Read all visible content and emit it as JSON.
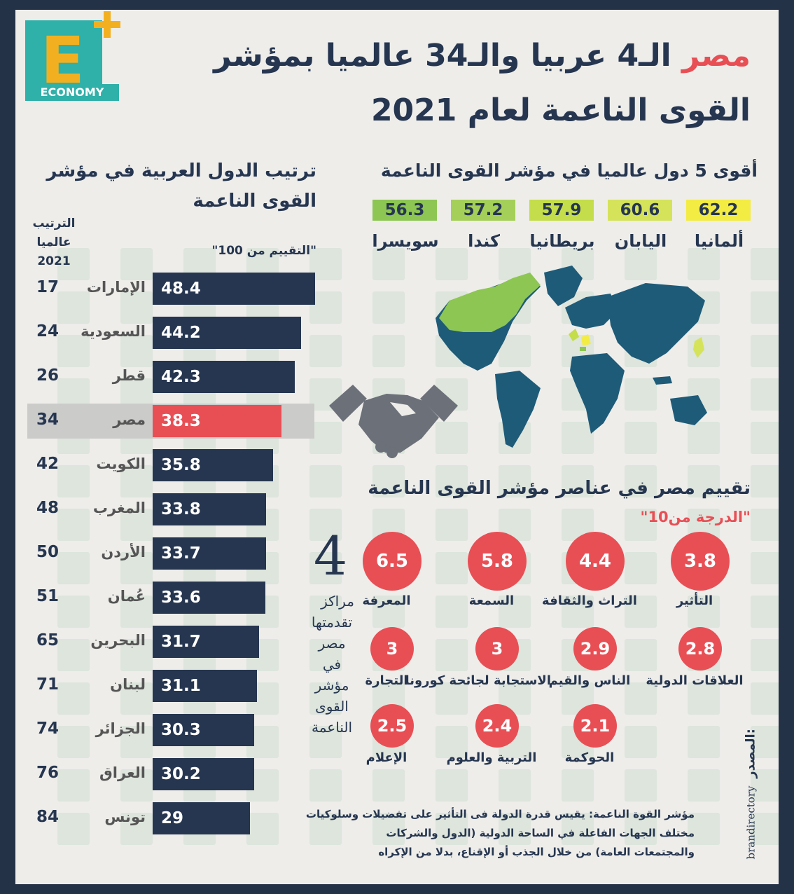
{
  "logo": {
    "letter": "E",
    "brand": "ECONOMY"
  },
  "title": {
    "highlight": "مصر",
    "line1": " الـ4 عربيا والـ34 عالميا بمؤشر",
    "line2": "القوى الناعمة لعام 2021"
  },
  "top5": {
    "heading": "أقوى 5 دول عالميا في مؤشر القوى الناعمة",
    "items": [
      {
        "country": "ألمانيا",
        "score": "62.2",
        "color": "#f3ec43"
      },
      {
        "country": "اليابان",
        "score": "60.6",
        "color": "#d5e35a"
      },
      {
        "country": "بريطانيا",
        "score": "57.9",
        "color": "#c4dd4a"
      },
      {
        "country": "كندا",
        "score": "57.2",
        "color": "#a4cf58"
      },
      {
        "country": "سويسرا",
        "score": "56.3",
        "color": "#8dc653"
      }
    ]
  },
  "arab_ranking": {
    "heading_line1": "ترتيب الدول العربية في مؤشر",
    "heading_line2": "القوى الناعمة",
    "rank_header": [
      "الترتيب",
      "عالميا",
      "2021"
    ],
    "score_header": "\"التقييم من 100\"",
    "rows": [
      {
        "country": "الإمارات",
        "score": "48.4",
        "rank": "17",
        "value": 48.4
      },
      {
        "country": "السعودية",
        "score": "44.2",
        "rank": "24",
        "value": 44.2
      },
      {
        "country": "قطر",
        "score": "42.3",
        "rank": "26",
        "value": 42.3
      },
      {
        "country": "مصر",
        "score": "38.3",
        "rank": "34",
        "value": 38.3,
        "highlight": true
      },
      {
        "country": "الكويت",
        "score": "35.8",
        "rank": "42",
        "value": 35.8
      },
      {
        "country": "المغرب",
        "score": "33.8",
        "rank": "48",
        "value": 33.8
      },
      {
        "country": "الأردن",
        "score": "33.7",
        "rank": "50",
        "value": 33.7
      },
      {
        "country": "عُمان",
        "score": "33.6",
        "rank": "51",
        "value": 33.6
      },
      {
        "country": "البحرين",
        "score": "31.7",
        "rank": "65",
        "value": 31.7
      },
      {
        "country": "لبنان",
        "score": "31.1",
        "rank": "71",
        "value": 31.1
      },
      {
        "country": "الجزائر",
        "score": "30.3",
        "rank": "74",
        "value": 30.3
      },
      {
        "country": "العراق",
        "score": "30.2",
        "rank": "76",
        "value": 30.2
      },
      {
        "country": "تونس",
        "score": "29",
        "rank": "84",
        "value": 29
      }
    ]
  },
  "egypt_advance": {
    "number": "4",
    "lines": [
      "مراكز",
      "تقدمتها",
      "مصر",
      "في",
      "مؤشر",
      "القوى",
      "الناعمة"
    ]
  },
  "egypt_elements": {
    "heading": "تقييم مصر في عناصر مؤشر القوى الناعمة",
    "subheading": "\"الدرجة من10\"",
    "items": [
      {
        "label": "التأثير",
        "score": "3.8"
      },
      {
        "label": "التراث والثقافة",
        "score": "4.4"
      },
      {
        "label": "السمعة",
        "score": "5.8"
      },
      {
        "label": "المعرفة",
        "score": "6.5"
      },
      {
        "label": "العلاقات الدولية",
        "score": "2.8"
      },
      {
        "label": "الناس والقيم",
        "score": "2.9"
      },
      {
        "label": "الاستجابة لجائحة كورونا",
        "score": "3"
      },
      {
        "label": "التجارة",
        "score": "3"
      },
      {
        "label": "الحوكمة",
        "score": "2.1"
      },
      {
        "label": "التربية والعلوم",
        "score": "2.4"
      },
      {
        "label": "الإعلام",
        "score": "2.5"
      }
    ]
  },
  "note": {
    "line1": "مؤشر القوة الناعمة: يقيس قدرة الدولة فى التأثير على تفضيلات وسلوكيات",
    "line2": "مختلف الجهات الفاعلة في الساحة الدولية (الدول والشركات",
    "line3": "والمجتمعات العامة) من خلال الجذب أو الإقناع، بدلا من الإكراه"
  },
  "source": {
    "label": "المصدر:",
    "value": "brandirectory"
  }
}
